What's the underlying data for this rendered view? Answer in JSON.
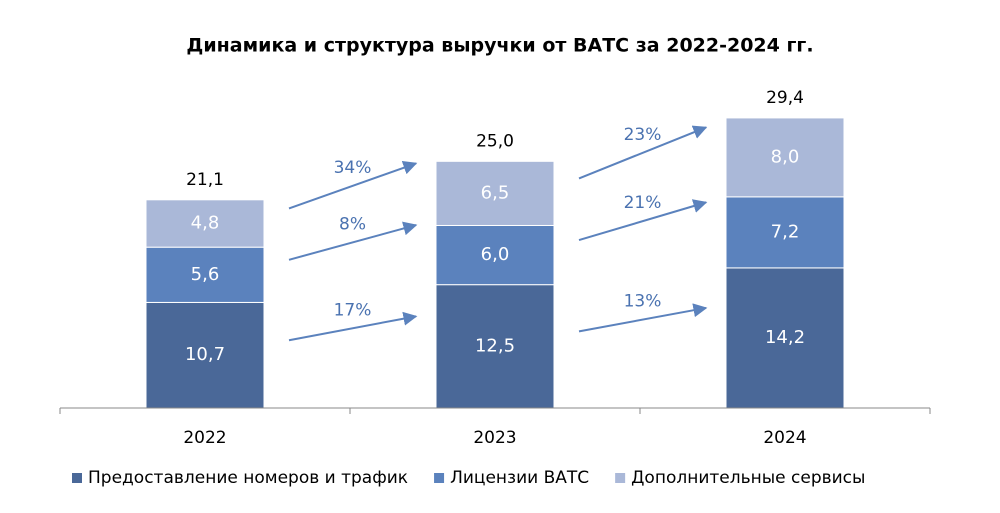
{
  "chart_data": {
    "type": "stacked-bar",
    "title": "Динамика и структура выручки от ВАТС за 2022-2024 гг.",
    "categories": [
      "2022",
      "2023",
      "2024"
    ],
    "series": [
      {
        "name": "Предоставление номеров и трафик",
        "color": "#4a6898",
        "values": [
          10.7,
          12.5,
          14.2
        ],
        "value_labels": [
          "10,7",
          "12,5",
          "14,2"
        ],
        "growth_labels": [
          "17%",
          "13%"
        ]
      },
      {
        "name": "Лицензии ВАТС",
        "color": "#5b82bd",
        "values": [
          5.6,
          6.0,
          7.2
        ],
        "value_labels": [
          "5,6",
          "6,0",
          "7,2"
        ],
        "growth_labels": [
          "8%",
          "21%"
        ]
      },
      {
        "name": "Дополнительные сервисы",
        "color": "#aab8d8",
        "values": [
          4.8,
          6.5,
          8.0
        ],
        "value_labels": [
          "4,8",
          "6,5",
          "8,0"
        ],
        "growth_labels": [
          "34%",
          "23%"
        ]
      }
    ],
    "totals": [
      21.1,
      25.0,
      29.4
    ],
    "total_labels": [
      "21,1",
      "25,0",
      "29,4"
    ],
    "ylim": [
      0,
      30
    ],
    "arrow_color": "#5b82bd"
  }
}
